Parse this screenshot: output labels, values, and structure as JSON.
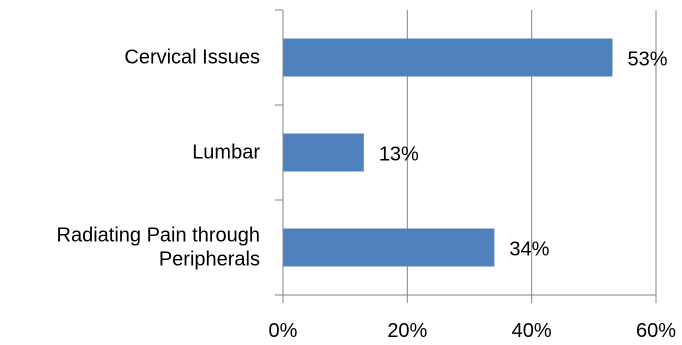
{
  "chart_data": {
    "type": "bar",
    "orientation": "horizontal",
    "title": "",
    "xlabel": "",
    "ylabel": "",
    "categories": [
      [
        "Cervical Issues"
      ],
      [
        "Lumbar"
      ],
      [
        "Radiating Pain through",
        "Peripherals"
      ]
    ],
    "values": [
      53,
      13,
      34
    ],
    "data_labels": [
      "53%",
      "13%",
      "34%"
    ],
    "xlim": [
      0,
      60
    ],
    "x_ticks": [
      0,
      20,
      40,
      60
    ],
    "x_tick_labels": [
      "0%",
      "20%",
      "40%",
      "60%"
    ],
    "grid": "vertical major gridlines",
    "legend": "none",
    "colors": {
      "bar": "#4f81bd",
      "gridline": "#868686",
      "axis": "#868686",
      "text": "#000000"
    }
  }
}
